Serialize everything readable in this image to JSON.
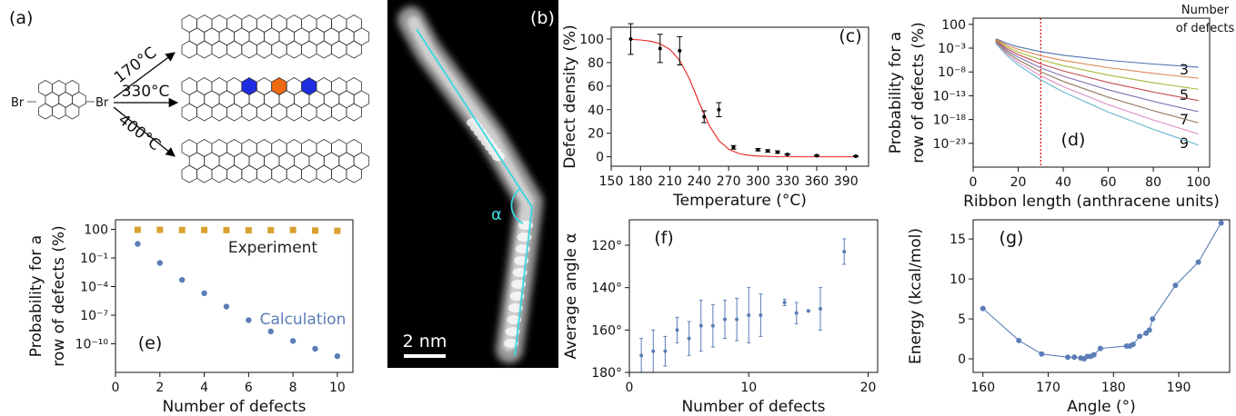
{
  "diagram_a": {
    "label": "(a)",
    "reactant_labels": [
      "Br",
      "Br"
    ],
    "temperatures": [
      "170°C",
      "330°C",
      "400°C"
    ]
  },
  "image_b": {
    "label": "(b)",
    "angle_label": "α",
    "scale_bar": "2 nm"
  },
  "chart_data": [
    {
      "type": "line",
      "panel_label": "(c)",
      "xlabel": "Temperature (°C)",
      "ylabel": "Defect density (%)",
      "xlim": [
        150,
        413
      ],
      "xticks": [
        150,
        180,
        210,
        240,
        270,
        300,
        330,
        360,
        390
      ],
      "ylim": [
        -8,
        110
      ],
      "yticks": [
        0,
        20,
        40,
        60,
        80,
        100
      ],
      "series": [
        {
          "color": "#e8201e",
          "style": "line",
          "x": [
            170,
            180,
            190,
            200,
            210,
            220,
            230,
            240,
            250,
            260,
            270,
            280,
            290,
            300,
            320,
            350,
            400
          ],
          "values": [
            99.7,
            99.2,
            98.2,
            96.0,
            91.2,
            81.8,
            66.1,
            45.8,
            26.9,
            13.8,
            6.5,
            2.9,
            1.3,
            0.6,
            0.1,
            0,
            0
          ]
        },
        {
          "color": "#000000",
          "style": "markers",
          "x": [
            170,
            200,
            220,
            245,
            260,
            275,
            300,
            310,
            320,
            330,
            360,
            400
          ],
          "values": [
            100,
            92,
            90,
            34,
            40,
            8,
            6,
            5,
            4,
            2,
            1,
            0.5
          ],
          "errors": [
            13,
            12,
            12,
            5,
            6,
            1.5,
            1,
            1,
            1,
            0.5,
            0.5,
            0.5
          ]
        }
      ]
    },
    {
      "type": "line",
      "log_y": true,
      "panel_label": "(d)",
      "xlabel": "Ribbon length (anthracene units)",
      "ylabel": [
        "Probability for a",
        "row of defects (%)"
      ],
      "legend_title": "Number of defects",
      "curve_labels": [
        "3",
        "5",
        "7",
        "9"
      ],
      "vline": {
        "x": 30,
        "color": "#e00000"
      },
      "xlim": [
        0,
        105
      ],
      "xticks": [
        0,
        20,
        40,
        60,
        80,
        100
      ],
      "ylim": [
        1e-28,
        2000
      ],
      "yticks": [
        100,
        {
          "value": 0.001,
          "label": "10⁻³"
        },
        {
          "value": 1e-08,
          "label": "10⁻⁸"
        },
        {
          "value": 1e-13,
          "label": "10⁻¹³"
        },
        {
          "value": 1e-18,
          "label": "10⁻¹⁸"
        },
        {
          "value": 1e-23,
          "label": "10⁻²³"
        }
      ],
      "x": [
        10,
        15,
        20,
        30,
        40,
        60,
        80,
        100
      ],
      "series": [
        {
          "color": "#4c72b0",
          "values": [
            0.1,
            0.01,
            0.0019,
            0.00018,
            3.3e-05,
            2.8e-06,
            4.6e-07,
            1e-07
          ]
        },
        {
          "color": "#dd8452",
          "values": [
            0.072,
            0.0044,
            0.00055,
            2.6e-05,
            2.6e-06,
            7.9e-08,
            5e-09,
            4.8e-10
          ]
        },
        {
          "color": "#a8b83a",
          "values": [
            0.052,
            0.0019,
            0.00015,
            3.7e-06,
            2.1e-07,
            2.2e-09,
            5.5e-11,
            2.2e-12
          ]
        },
        {
          "color": "#c44e52",
          "values": [
            0.038,
            0.00081,
            4.5e-05,
            5.2e-07,
            1.6e-08,
            6.2e-11,
            6e-13,
            1e-14
          ]
        },
        {
          "color": "#8172b3",
          "values": [
            0.028,
            0.00035,
            1.3e-05,
            7.6e-08,
            1.3e-09,
            1.7e-12,
            6.6e-15,
            4.5e-17
          ]
        },
        {
          "color": "#937860",
          "values": [
            0.02,
            0.00015,
            3.5e-06,
            1.1e-08,
            1e-10,
            4.8e-14,
            7.2e-17,
            2e-19
          ]
        },
        {
          "color": "#da8bc3",
          "values": [
            0.014,
            6.5e-05,
            1e-06,
            1.5e-09,
            8.1e-12,
            1.3e-15,
            7.9e-19,
            9.3e-22
          ]
        },
        {
          "color": "#64b5cd",
          "values": [
            0.01,
            2.8e-05,
            2.9e-07,
            2.2e-10,
            6.3e-13,
            3.8e-17,
            8.9e-21,
            4.3e-24
          ]
        }
      ]
    },
    {
      "type": "scatter",
      "log_y": true,
      "panel_label": "(e)",
      "xlabel": "Number of defects",
      "ylabel": [
        "Probability for a",
        "row of defects (%)"
      ],
      "xlim": [
        0,
        10.7
      ],
      "xticks": [
        0,
        2,
        4,
        6,
        8,
        10
      ],
      "ylim": [
        1e-13,
        1000
      ],
      "yticks": [
        100,
        {
          "value": 0.1,
          "label": "10⁻¹"
        },
        {
          "value": 0.0001,
          "label": "10⁻⁴"
        },
        {
          "value": 1e-07,
          "label": "10⁻⁷"
        },
        {
          "value": 1e-10,
          "label": "10⁻¹⁰"
        }
      ],
      "x": [
        1,
        2,
        3,
        4,
        5,
        6,
        7,
        8,
        9,
        10
      ],
      "series": [
        {
          "name": "Experiment",
          "color": "#d9a030",
          "label_color": "#222222",
          "marker": "square",
          "values": [
            90,
            90,
            85,
            85,
            82,
            80,
            82,
            85,
            75,
            70
          ]
        },
        {
          "name": "Calculation",
          "color": "#5b7db6",
          "label_color": "#5b7db6",
          "marker": "circle",
          "values": [
            3,
            0.03,
            0.0005,
            2e-05,
            8e-07,
            3e-08,
            2e-09,
            2e-10,
            3e-11,
            5e-12
          ]
        }
      ]
    },
    {
      "type": "scatter",
      "panel_label": "(f)",
      "xlabel": "Number of defects",
      "ylabel": "Average angle α",
      "xlim": [
        0,
        20.8
      ],
      "xticks": [
        0,
        10,
        20
      ],
      "ylim": [
        180,
        108
      ],
      "yticks": [
        {
          "value": 120,
          "label": "120°"
        },
        {
          "value": 140,
          "label": "140°"
        },
        {
          "value": 160,
          "label": "160°"
        },
        {
          "value": 180,
          "label": "180°"
        }
      ],
      "series": [
        {
          "color": "#5b7db6",
          "marker": "dot",
          "x": [
            1,
            2,
            3,
            4,
            5,
            6,
            7,
            8,
            9,
            10,
            11,
            13,
            14,
            15,
            16,
            18
          ],
          "values": [
            172,
            170,
            170,
            160,
            164,
            158,
            158,
            155,
            155,
            153,
            153,
            147,
            152,
            151,
            150,
            123
          ],
          "errors": [
            8,
            10,
            7,
            6,
            8,
            12,
            10,
            9,
            10,
            13,
            10,
            1.5,
            5,
            0.3,
            10,
            6
          ]
        }
      ]
    },
    {
      "type": "line",
      "panel_label": "(g)",
      "xlabel": "Angle (°)",
      "ylabel": "Energy (kcal/mol)",
      "xlim": [
        158.5,
        197.8
      ],
      "xticks": [
        160,
        170,
        180,
        190
      ],
      "ylim": [
        -1.7,
        17.4
      ],
      "yticks": [
        0,
        5,
        10,
        15
      ],
      "series": [
        {
          "color": "#5b7db6",
          "style": "markers+line",
          "x": [
            160,
            165.5,
            169,
            173,
            174,
            175,
            175.5,
            176,
            176.5,
            177,
            178,
            182,
            182.5,
            183,
            184,
            185,
            185.5,
            186,
            189.5,
            193,
            196.5
          ],
          "values": [
            6.3,
            2.3,
            0.6,
            0.2,
            0.2,
            0.1,
            0.0,
            0.3,
            0.3,
            0.5,
            1.3,
            1.6,
            1.6,
            1.8,
            2.8,
            3.2,
            3.6,
            5.0,
            9.2,
            12.1,
            17.0
          ]
        }
      ]
    }
  ]
}
